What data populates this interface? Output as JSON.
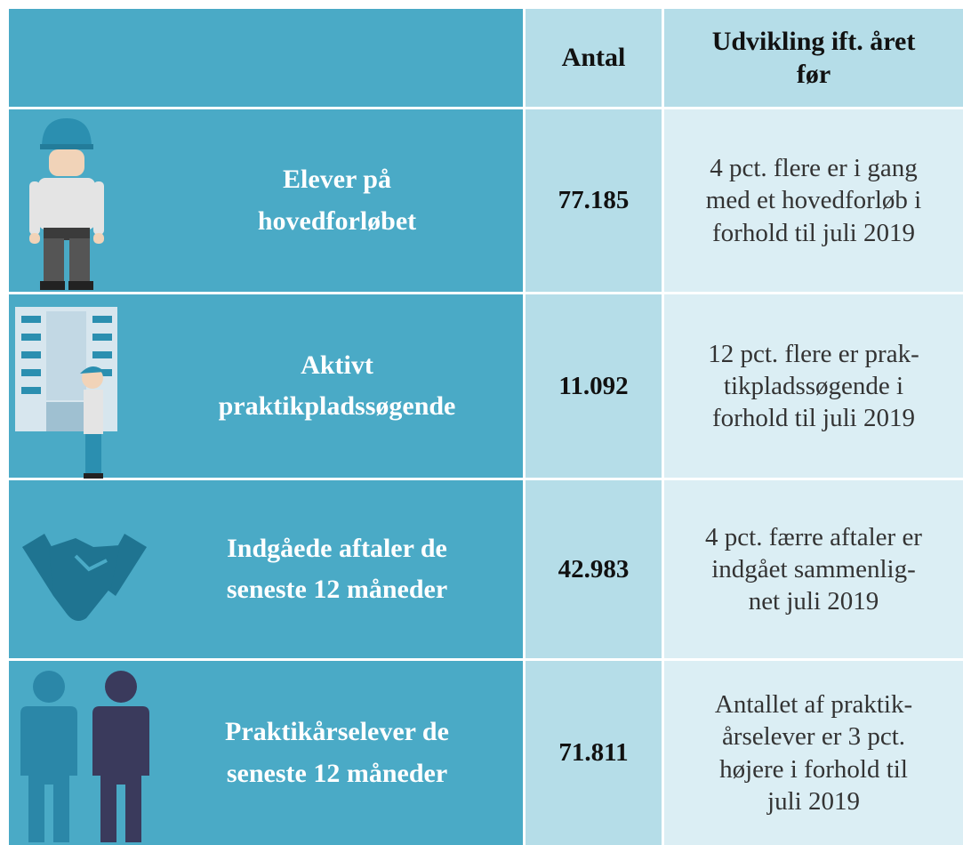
{
  "table": {
    "header": [
      "Antal",
      [
        "Udvikling ift. året",
        "før"
      ]
    ],
    "rows": [
      {
        "label": [
          "Elever på",
          "hovedforløbet"
        ],
        "count": "77.185",
        "change": [
          "4 pct. flere er i gang",
          "med et hovedforløb i",
          "forhold til juli 2019"
        ]
      },
      {
        "label": [
          "Aktivt",
          "praktikpladssøgende"
        ],
        "count": "11.092",
        "change": [
          "12 pct. flere er prak-",
          "tikpladssøgende i",
          "forhold til juli 2019"
        ]
      },
      {
        "label": [
          "Indgåede aftaler de",
          "seneste 12 måneder"
        ],
        "count": "42.983",
        "change": [
          "4 pct. færre aftaler er",
          "indgået sammenlig-",
          "net juli 2019"
        ]
      },
      {
        "label": [
          "Praktikårselever de",
          "seneste 12 måneder"
        ],
        "count": "71.811",
        "change": [
          "Antallet af praktik-",
          "årselever er 3 pct.",
          "højere i forhold til",
          "juli 2019"
        ]
      }
    ]
  }
}
